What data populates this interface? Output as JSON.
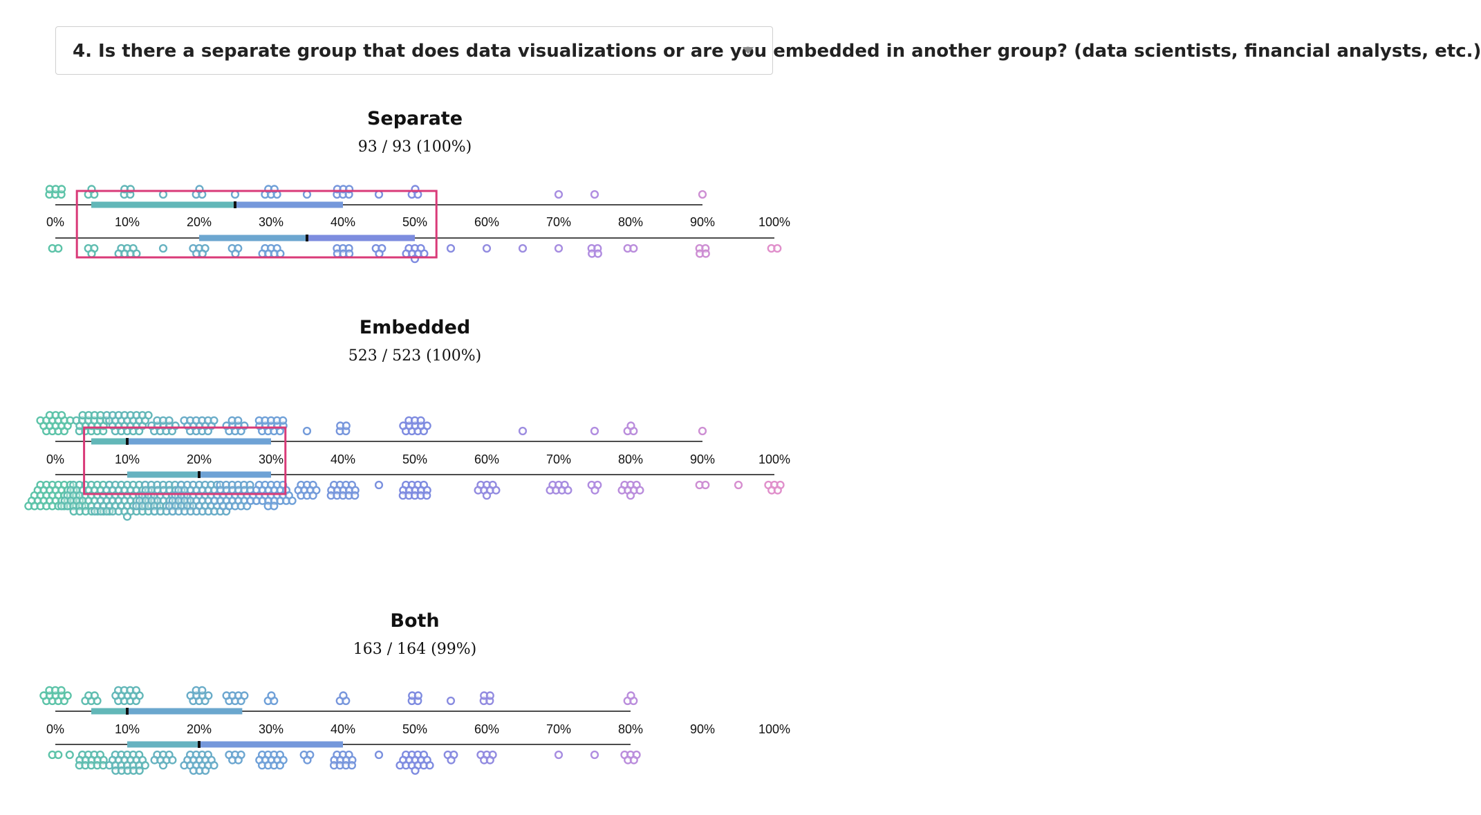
{
  "question": {
    "label": "4. Is there a separate group that does data visualizations or are you embedded in another group? (data scientists, financial analysts, etc.)",
    "icon": "chevron-down-icon"
  },
  "colors": {
    "low": "#5cc3a8",
    "mid": "#6fa0d8",
    "high_mid": "#7e8be0",
    "high": "#b08ce0",
    "top": "#e08fcb",
    "highlight": "#d93a78",
    "axis": "#111111"
  },
  "chart_data": [
    {
      "type": "beeswarm",
      "title": "Separate",
      "count": "93 / 93 (100%)",
      "xlim": [
        0,
        100
      ],
      "ticks": [
        "0%",
        "10%",
        "20%",
        "30%",
        "40%",
        "50%",
        "60%",
        "70%",
        "80%",
        "90%",
        "100%"
      ],
      "tick_values": [
        0,
        10,
        20,
        30,
        40,
        50,
        60,
        70,
        80,
        90,
        100
      ],
      "top": {
        "axis_end": 90,
        "bins": [
          [
            0,
            6
          ],
          [
            5,
            3
          ],
          [
            10,
            4
          ],
          [
            15,
            1
          ],
          [
            20,
            3
          ],
          [
            25,
            1
          ],
          [
            30,
            5
          ],
          [
            35,
            1
          ],
          [
            40,
            6
          ],
          [
            45,
            1
          ],
          [
            50,
            3
          ],
          [
            70,
            1
          ],
          [
            75,
            1
          ],
          [
            90,
            1
          ]
        ],
        "iqr": [
          5,
          40
        ],
        "median": 25
      },
      "bottom": {
        "axis_end": 100,
        "bins": [
          [
            0,
            2
          ],
          [
            5,
            3
          ],
          [
            10,
            7
          ],
          [
            15,
            1
          ],
          [
            20,
            5
          ],
          [
            25,
            3
          ],
          [
            30,
            7
          ],
          [
            40,
            6
          ],
          [
            45,
            3
          ],
          [
            50,
            8
          ],
          [
            55,
            1
          ],
          [
            60,
            1
          ],
          [
            65,
            1
          ],
          [
            70,
            1
          ],
          [
            75,
            4
          ],
          [
            80,
            2
          ],
          [
            90,
            4
          ],
          [
            100,
            2
          ]
        ],
        "iqr": [
          20,
          50
        ],
        "median": 35
      },
      "highlight": [
        3,
        53
      ]
    },
    {
      "type": "beeswarm",
      "title": "Embedded",
      "count": "523 / 523 (100%)",
      "xlim": [
        0,
        100
      ],
      "ticks": [
        "0%",
        "10%",
        "20%",
        "30%",
        "40%",
        "50%",
        "60%",
        "70%",
        "80%",
        "90%",
        "100%"
      ],
      "tick_values": [
        0,
        10,
        20,
        30,
        40,
        50,
        60,
        70,
        80,
        90,
        100
      ],
      "top": {
        "axis_end": 90,
        "bins": [
          [
            0,
            18
          ],
          [
            5,
            20
          ],
          [
            10,
            26
          ],
          [
            15,
            12
          ],
          [
            20,
            15
          ],
          [
            25,
            9
          ],
          [
            30,
            14
          ],
          [
            35,
            1
          ],
          [
            40,
            4
          ],
          [
            50,
            12
          ],
          [
            65,
            1
          ],
          [
            75,
            1
          ],
          [
            80,
            3
          ],
          [
            90,
            1
          ]
        ],
        "iqr": [
          5,
          30
        ],
        "median": 10
      },
      "bottom": {
        "axis_end": 100,
        "bins": [
          [
            0,
            40
          ],
          [
            5,
            52
          ],
          [
            10,
            58
          ],
          [
            15,
            45
          ],
          [
            20,
            55
          ],
          [
            25,
            32
          ],
          [
            30,
            28
          ],
          [
            35,
            10
          ],
          [
            40,
            14
          ],
          [
            45,
            1
          ],
          [
            50,
            14
          ],
          [
            60,
            8
          ],
          [
            70,
            7
          ],
          [
            75,
            3
          ],
          [
            80,
            8
          ],
          [
            90,
            2
          ],
          [
            95,
            1
          ],
          [
            100,
            5
          ]
        ],
        "iqr": [
          10,
          30
        ],
        "median": 20
      },
      "highlight": [
        4,
        32
      ]
    },
    {
      "type": "beeswarm",
      "title": "Both",
      "count": "163 / 164 (99%)",
      "xlim": [
        0,
        100
      ],
      "ticks": [
        "0%",
        "10%",
        "20%",
        "30%",
        "40%",
        "50%",
        "60%",
        "70%",
        "80%",
        "90%",
        "100%"
      ],
      "tick_values": [
        0,
        10,
        20,
        30,
        40,
        50,
        60,
        70,
        80,
        90,
        100
      ],
      "top": {
        "axis_end": 80,
        "bins": [
          [
            0,
            12
          ],
          [
            5,
            5
          ],
          [
            10,
            13
          ],
          [
            20,
            9
          ],
          [
            25,
            7
          ],
          [
            30,
            3
          ],
          [
            40,
            3
          ],
          [
            50,
            4
          ],
          [
            55,
            1
          ],
          [
            60,
            4
          ],
          [
            80,
            3
          ]
        ],
        "iqr": [
          5,
          26
        ],
        "median": 10
      },
      "bottom": {
        "axis_end": 80,
        "bins": [
          [
            0,
            2
          ],
          [
            2,
            1
          ],
          [
            5,
            14
          ],
          [
            10,
            23
          ],
          [
            15,
            8
          ],
          [
            20,
            18
          ],
          [
            25,
            5
          ],
          [
            30,
            13
          ],
          [
            35,
            3
          ],
          [
            40,
            11
          ],
          [
            45,
            1
          ],
          [
            50,
            16
          ],
          [
            55,
            3
          ],
          [
            60,
            5
          ],
          [
            70,
            1
          ],
          [
            75,
            1
          ],
          [
            80,
            5
          ]
        ],
        "iqr": [
          10,
          40
        ],
        "median": 20
      },
      "highlight": null
    }
  ]
}
